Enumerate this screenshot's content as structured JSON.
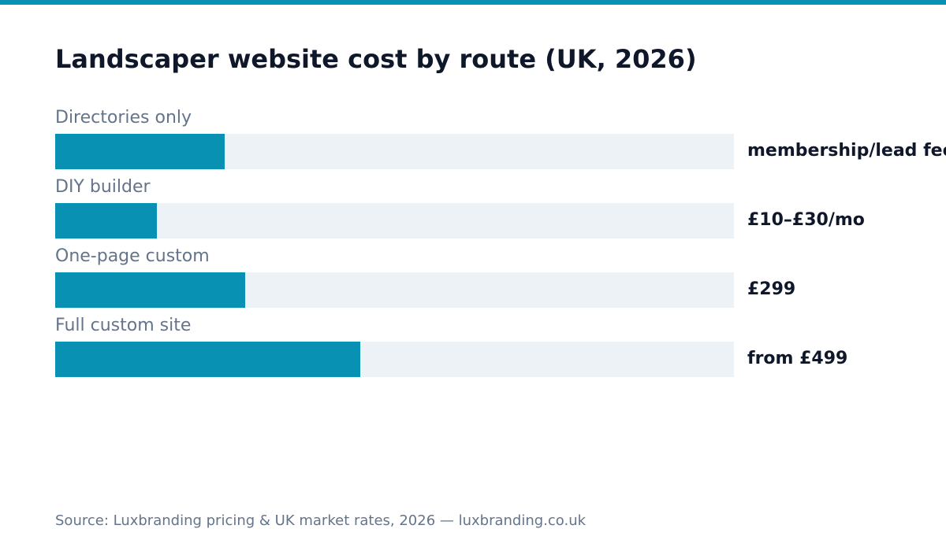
{
  "colors": {
    "accent": "#0891b2",
    "track": "#edf2f7",
    "title": "#0f172a",
    "muted": "#64748b"
  },
  "chart_data": {
    "type": "bar",
    "orientation": "horizontal",
    "title": "Landscaper website cost by route (UK, 2026)",
    "categories": [
      "Directories only",
      "DIY builder",
      "One-page custom",
      "Full custom site"
    ],
    "values": [
      25,
      15,
      28,
      45
    ],
    "value_scale_max": 100,
    "value_labels": [
      "membership/lead fees",
      "£10–£30/mo",
      "£299",
      "from £499"
    ],
    "grid": false,
    "legend": "none"
  },
  "footer": {
    "source": "Source: Luxbranding pricing & UK market rates, 2026 — luxbranding.co.uk"
  }
}
